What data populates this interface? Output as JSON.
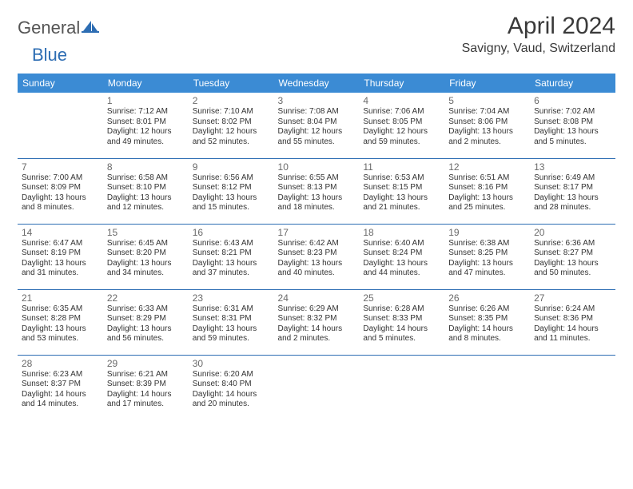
{
  "brand": {
    "part1": "General",
    "part2": "Blue"
  },
  "title": "April 2024",
  "location": "Savigny, Vaud, Switzerland",
  "header_bg": "#3b8bd4",
  "header_text": "#ffffff",
  "rule_color": "#2d6db3",
  "day_headers": [
    "Sunday",
    "Monday",
    "Tuesday",
    "Wednesday",
    "Thursday",
    "Friday",
    "Saturday"
  ],
  "weeks": [
    [
      null,
      {
        "n": "1",
        "sr": "7:12 AM",
        "ss": "8:01 PM",
        "dl": "12 hours and 49 minutes."
      },
      {
        "n": "2",
        "sr": "7:10 AM",
        "ss": "8:02 PM",
        "dl": "12 hours and 52 minutes."
      },
      {
        "n": "3",
        "sr": "7:08 AM",
        "ss": "8:04 PM",
        "dl": "12 hours and 55 minutes."
      },
      {
        "n": "4",
        "sr": "7:06 AM",
        "ss": "8:05 PM",
        "dl": "12 hours and 59 minutes."
      },
      {
        "n": "5",
        "sr": "7:04 AM",
        "ss": "8:06 PM",
        "dl": "13 hours and 2 minutes."
      },
      {
        "n": "6",
        "sr": "7:02 AM",
        "ss": "8:08 PM",
        "dl": "13 hours and 5 minutes."
      }
    ],
    [
      {
        "n": "7",
        "sr": "7:00 AM",
        "ss": "8:09 PM",
        "dl": "13 hours and 8 minutes."
      },
      {
        "n": "8",
        "sr": "6:58 AM",
        "ss": "8:10 PM",
        "dl": "13 hours and 12 minutes."
      },
      {
        "n": "9",
        "sr": "6:56 AM",
        "ss": "8:12 PM",
        "dl": "13 hours and 15 minutes."
      },
      {
        "n": "10",
        "sr": "6:55 AM",
        "ss": "8:13 PM",
        "dl": "13 hours and 18 minutes."
      },
      {
        "n": "11",
        "sr": "6:53 AM",
        "ss": "8:15 PM",
        "dl": "13 hours and 21 minutes."
      },
      {
        "n": "12",
        "sr": "6:51 AM",
        "ss": "8:16 PM",
        "dl": "13 hours and 25 minutes."
      },
      {
        "n": "13",
        "sr": "6:49 AM",
        "ss": "8:17 PM",
        "dl": "13 hours and 28 minutes."
      }
    ],
    [
      {
        "n": "14",
        "sr": "6:47 AM",
        "ss": "8:19 PM",
        "dl": "13 hours and 31 minutes."
      },
      {
        "n": "15",
        "sr": "6:45 AM",
        "ss": "8:20 PM",
        "dl": "13 hours and 34 minutes."
      },
      {
        "n": "16",
        "sr": "6:43 AM",
        "ss": "8:21 PM",
        "dl": "13 hours and 37 minutes."
      },
      {
        "n": "17",
        "sr": "6:42 AM",
        "ss": "8:23 PM",
        "dl": "13 hours and 40 minutes."
      },
      {
        "n": "18",
        "sr": "6:40 AM",
        "ss": "8:24 PM",
        "dl": "13 hours and 44 minutes."
      },
      {
        "n": "19",
        "sr": "6:38 AM",
        "ss": "8:25 PM",
        "dl": "13 hours and 47 minutes."
      },
      {
        "n": "20",
        "sr": "6:36 AM",
        "ss": "8:27 PM",
        "dl": "13 hours and 50 minutes."
      }
    ],
    [
      {
        "n": "21",
        "sr": "6:35 AM",
        "ss": "8:28 PM",
        "dl": "13 hours and 53 minutes."
      },
      {
        "n": "22",
        "sr": "6:33 AM",
        "ss": "8:29 PM",
        "dl": "13 hours and 56 minutes."
      },
      {
        "n": "23",
        "sr": "6:31 AM",
        "ss": "8:31 PM",
        "dl": "13 hours and 59 minutes."
      },
      {
        "n": "24",
        "sr": "6:29 AM",
        "ss": "8:32 PM",
        "dl": "14 hours and 2 minutes."
      },
      {
        "n": "25",
        "sr": "6:28 AM",
        "ss": "8:33 PM",
        "dl": "14 hours and 5 minutes."
      },
      {
        "n": "26",
        "sr": "6:26 AM",
        "ss": "8:35 PM",
        "dl": "14 hours and 8 minutes."
      },
      {
        "n": "27",
        "sr": "6:24 AM",
        "ss": "8:36 PM",
        "dl": "14 hours and 11 minutes."
      }
    ],
    [
      {
        "n": "28",
        "sr": "6:23 AM",
        "ss": "8:37 PM",
        "dl": "14 hours and 14 minutes."
      },
      {
        "n": "29",
        "sr": "6:21 AM",
        "ss": "8:39 PM",
        "dl": "14 hours and 17 minutes."
      },
      {
        "n": "30",
        "sr": "6:20 AM",
        "ss": "8:40 PM",
        "dl": "14 hours and 20 minutes."
      },
      null,
      null,
      null,
      null
    ]
  ],
  "labels": {
    "sunrise": "Sunrise:",
    "sunset": "Sunset:",
    "daylight": "Daylight:"
  }
}
